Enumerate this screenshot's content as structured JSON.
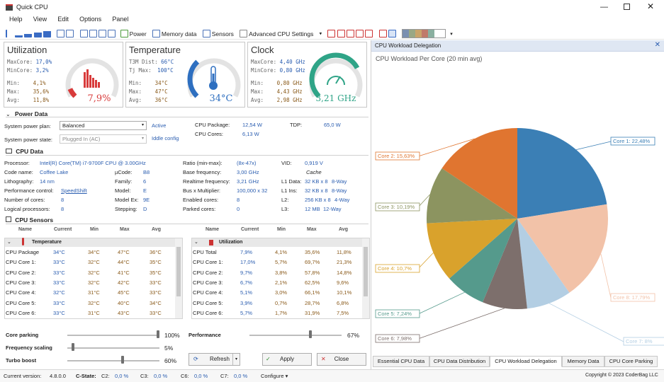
{
  "window": {
    "title": "Quick CPU"
  },
  "menu": [
    "Help",
    "View",
    "Edit",
    "Options",
    "Panel"
  ],
  "toolbar": {
    "power": "Power",
    "memory": "Memory data",
    "sensors": "Sensors",
    "advanced": "Advanced CPU Settings"
  },
  "util": {
    "title": "Utilization",
    "max_core_label": "MaxCore:",
    "max_core": "17,0%",
    "min_core_label": "MinCore:",
    "min_core": "3,2%",
    "min_label": "Min:",
    "min": "4,1%",
    "max_label": "Max:",
    "max": "35,6%",
    "avg_label": "Avg:",
    "avg": "11,8%",
    "value": "7,9%",
    "fraction": 0.079
  },
  "temp": {
    "title": "Temperature",
    "dist_label": "T3M Dist:",
    "dist": "66°C",
    "tj_label": "Tj Max:",
    "tj": "100°C",
    "min_label": "Min:",
    "min": "34°C",
    "max_label": "Max:",
    "max": "47°C",
    "avg_label": "Avg:",
    "avg": "36°C",
    "value": "34°C",
    "fraction": 0.34
  },
  "clock": {
    "title": "Clock",
    "max_core_label": "MaxCore:",
    "max_core": "4,40 GHz",
    "min_core_label": "MinCore:",
    "min_core": "0,80 GHz",
    "min_label": "Min:",
    "min": "0,80 GHz",
    "max_label": "Max:",
    "max": "4,43 GHz",
    "avg_label": "Avg:",
    "avg": "2,98 GHz",
    "value": "3,21 GHz",
    "fraction": 0.73
  },
  "power": {
    "header": "Power Data",
    "plan_label": "System power plan:",
    "plan": "Balanced",
    "active": "Active",
    "state_label": "System power state:",
    "state": "Plugged In (AC)",
    "idle": "Iddle config",
    "pkg_label": "CPU Package:",
    "pkg": "12,54 W",
    "cores_label": "CPU Cores:",
    "cores": "6,13 W",
    "tdp_label": "TDP:",
    "tdp": "65,0 W"
  },
  "cpu": {
    "header": "CPU Data",
    "proc_label": "Processor:",
    "proc": "Intel(R) Core(TM) i7-9700F CPU @ 3.00GHz",
    "code_label": "Code name:",
    "code": "Coffee Lake",
    "litho_label": "Lithography:",
    "litho": "14 nm",
    "perf_label": "Performance control:",
    "perf": "SpeedShift",
    "cores_label": "Number of cores:",
    "cores": "8",
    "logical_label": "Logical processors:",
    "logical": "8",
    "ucode_label": "µCode:",
    "ucode": "B8",
    "family_label": "Family:",
    "family": "6",
    "model_label": "Model:",
    "model": "E",
    "modelex_label": "Model Ex:",
    "modelex": "9E",
    "stepping_label": "Stepping:",
    "stepping": "D",
    "ratio_label": "Ratio (min-max):",
    "ratio": "(8x-47x)",
    "base_label": "Base frequency:",
    "base": "3,00 GHz",
    "rt_label": "Realtime frequency:",
    "rt": "3,21 GHz",
    "bus_label": "Bus x Multiplier:",
    "bus": "100,000 x 32",
    "enabled_label": "Enabled cores:",
    "enabled": "8",
    "parked_label": "Parked cores:",
    "parked": "0",
    "vid_label": "VID:",
    "vid": "0,919 V",
    "cache": "Cache",
    "l1d_label": "L1 Data:",
    "l1d": "32 KB x 8",
    "l1d_way": "8-Way",
    "l1i_label": "L1 Ins:",
    "l1i": "32 KB x 8",
    "l1i_way": "8-Way",
    "l2_label": "L2:",
    "l2": "256 KB x 8",
    "l2_way": "4-Way",
    "l3_label": "L3:",
    "l3": "12 MB",
    "l3_way": "12-Way"
  },
  "sensors": {
    "header": "CPU Sensors",
    "cols": [
      "Name",
      "Current",
      "Min",
      "Max",
      "Avg"
    ],
    "temp_group": "Temperature",
    "temp_rows": [
      [
        "CPU Package",
        "34°C",
        "34°C",
        "47°C",
        "36°C"
      ],
      [
        "CPU Core 1:",
        "33°C",
        "32°C",
        "44°C",
        "35°C"
      ],
      [
        "CPU Core 2:",
        "33°C",
        "32°C",
        "41°C",
        "35°C"
      ],
      [
        "CPU Core 3:",
        "33°C",
        "32°C",
        "42°C",
        "33°C"
      ],
      [
        "CPU Core 4:",
        "32°C",
        "31°C",
        "45°C",
        "33°C"
      ],
      [
        "CPU Core 5:",
        "33°C",
        "32°C",
        "40°C",
        "34°C"
      ],
      [
        "CPU Core 6:",
        "33°C",
        "31°C",
        "43°C",
        "33°C"
      ]
    ],
    "util_group": "Utilization",
    "util_rows": [
      [
        "CPU Total",
        "7,9%",
        "4,1%",
        "35,6%",
        "11,8%"
      ],
      [
        "CPU Core 1:",
        "17,0%",
        "5,7%",
        "69,7%",
        "21,3%"
      ],
      [
        "CPU Core 2:",
        "9,7%",
        "3,8%",
        "57,8%",
        "14,8%"
      ],
      [
        "CPU Core 3:",
        "6,7%",
        "2,1%",
        "62,5%",
        "9,6%"
      ],
      [
        "CPU Core 4:",
        "5,1%",
        "3,0%",
        "66,1%",
        "10,1%"
      ],
      [
        "CPU Core 5:",
        "3,9%",
        "0,7%",
        "28,7%",
        "6,8%"
      ],
      [
        "CPU Core 6:",
        "5,7%",
        "1,7%",
        "31,9%",
        "7,5%"
      ]
    ]
  },
  "controls": {
    "parking_label": "Core parking",
    "parking": "100%",
    "parking_frac": 1.0,
    "freq_label": "Frequency scaling",
    "freq": "5%",
    "freq_frac": 0.05,
    "turbo_label": "Turbo boost",
    "turbo": "60%",
    "turbo_frac": 0.6,
    "perf_label": "Performance",
    "perf": "67%",
    "perf_frac": 0.67,
    "refresh": "Refresh",
    "apply": "Apply",
    "close": "Close"
  },
  "status": {
    "version_label": "Current version:",
    "version": "4.8.0.0",
    "cstate_label": "C-State:",
    "c2_label": "C2:",
    "c2": "0,0 %",
    "c3_label": "C3:",
    "c3": "0,0 %",
    "c6_label": "C6:",
    "c6": "0,0 %",
    "c7_label": "C7:",
    "c7": "0,0 %",
    "configure": "Configure",
    "copyright": "Copyright © 2023 CoderBag LLC"
  },
  "right": {
    "title": "CPU Workload Delegation",
    "subtitle": "CPU Workload Per Core (20 min avg)",
    "tabs": [
      "Essential CPU Data",
      "CPU Data Distribution",
      "CPU Workload Delegation",
      "Memory Data",
      "CPU Core Parking"
    ]
  },
  "chart_data": {
    "type": "pie",
    "title": "CPU Workload Per Core (20 min avg)",
    "slices": [
      {
        "label": "Core 1: 22,48%",
        "value": 22.48,
        "color": "#3b7fb5"
      },
      {
        "label": "Core 8: 17,79%",
        "value": 17.79,
        "color": "#f2c2a8"
      },
      {
        "label": "Core 7: 8%",
        "value": 8.0,
        "color": "#b3cee3"
      },
      {
        "label": "Core 6: 7,98%",
        "value": 7.98,
        "color": "#7d6f6c"
      },
      {
        "label": "Core 5: 7,24%",
        "value": 7.24,
        "color": "#559a8c"
      },
      {
        "label": "Core 4: 10,7%",
        "value": 10.7,
        "color": "#d9a22c"
      },
      {
        "label": "Core 3: 10,19%",
        "value": 10.19,
        "color": "#8c9460"
      },
      {
        "label": "Core 2: 15,63%",
        "value": 15.63,
        "color": "#e07530"
      }
    ]
  }
}
